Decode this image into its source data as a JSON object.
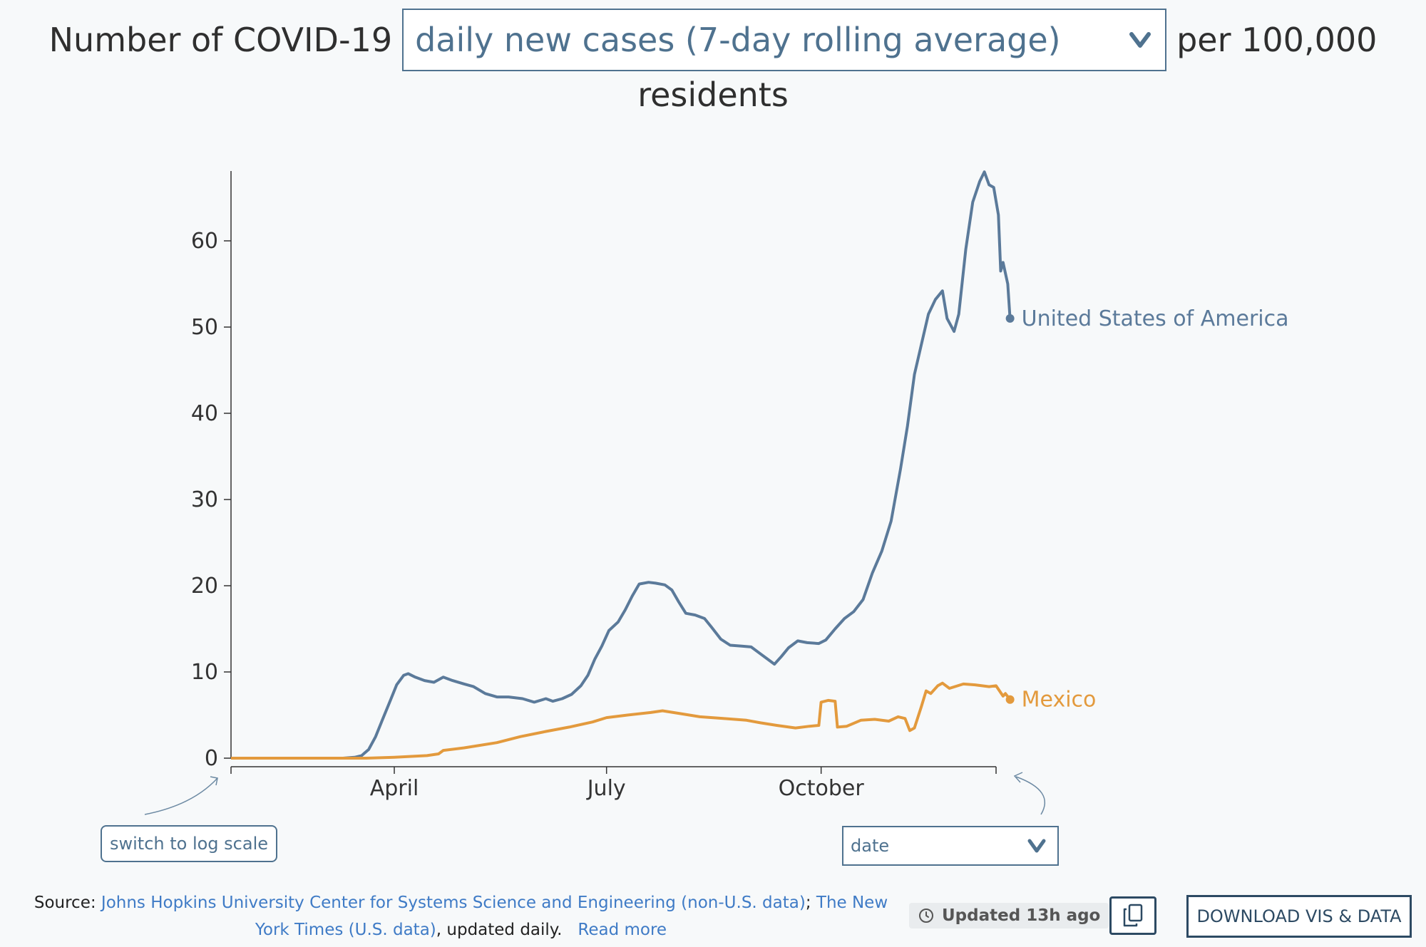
{
  "header": {
    "prefix": "Number of COVID-19",
    "metric_selected": "daily new cases (7-day rolling average)",
    "suffix": "per 100,000",
    "line2": "residents"
  },
  "controls": {
    "log_scale_label": "switch to log scale",
    "x_axis_selected": "date"
  },
  "footer": {
    "source_label": "Source:",
    "source_link_1": "Johns Hopkins University Center for Systems Science and Engineering (non-U.S. data)",
    "separator": ";",
    "source_link_2": "The New York Times (U.S. data)",
    "updated_daily": ", updated daily.",
    "read_more": "Read more",
    "updated_text": "Updated 13h ago",
    "download_label": "DOWNLOAD VIS & DATA"
  },
  "colors": {
    "usa": "#5b7a9a",
    "mexico": "#e39a3d",
    "accent": "#4f728f"
  },
  "chart_data": {
    "type": "line",
    "title": "",
    "xlabel": "",
    "ylabel": "",
    "xlim": [
      "2020-01-22",
      "2020-12-15"
    ],
    "ylim": [
      0,
      68
    ],
    "yticks": [
      0,
      10,
      20,
      30,
      40,
      50,
      60
    ],
    "xticks": [
      {
        "date": "2020-04-01",
        "label": "April"
      },
      {
        "date": "2020-07-01",
        "label": "July"
      },
      {
        "date": "2020-10-01",
        "label": "October"
      }
    ],
    "grid": false,
    "legend": "inline labels at line ends",
    "series": [
      {
        "name": "United States of America",
        "color": "#5b7a9a",
        "points": [
          [
            "2020-01-22",
            0
          ],
          [
            "2020-03-10",
            0
          ],
          [
            "2020-03-15",
            0.1
          ],
          [
            "2020-03-18",
            0.3
          ],
          [
            "2020-03-21",
            1
          ],
          [
            "2020-03-24",
            2.5
          ],
          [
            "2020-03-27",
            4.5
          ],
          [
            "2020-03-30",
            6.5
          ],
          [
            "2020-04-02",
            8.5
          ],
          [
            "2020-04-05",
            9.6
          ],
          [
            "2020-04-07",
            9.8
          ],
          [
            "2020-04-10",
            9.4
          ],
          [
            "2020-04-14",
            9.0
          ],
          [
            "2020-04-18",
            8.8
          ],
          [
            "2020-04-22",
            9.4
          ],
          [
            "2020-04-26",
            9.0
          ],
          [
            "2020-05-01",
            8.6
          ],
          [
            "2020-05-05",
            8.3
          ],
          [
            "2020-05-10",
            7.5
          ],
          [
            "2020-05-15",
            7.1
          ],
          [
            "2020-05-20",
            7.1
          ],
          [
            "2020-05-26",
            6.9
          ],
          [
            "2020-05-31",
            6.5
          ],
          [
            "2020-06-05",
            6.9
          ],
          [
            "2020-06-08",
            6.6
          ],
          [
            "2020-06-12",
            6.9
          ],
          [
            "2020-06-16",
            7.4
          ],
          [
            "2020-06-20",
            8.4
          ],
          [
            "2020-06-23",
            9.6
          ],
          [
            "2020-06-26",
            11.5
          ],
          [
            "2020-06-29",
            13.0
          ],
          [
            "2020-07-02",
            14.8
          ],
          [
            "2020-07-06",
            15.8
          ],
          [
            "2020-07-09",
            17.2
          ],
          [
            "2020-07-12",
            18.8
          ],
          [
            "2020-07-15",
            20.2
          ],
          [
            "2020-07-19",
            20.4
          ],
          [
            "2020-07-22",
            20.3
          ],
          [
            "2020-07-26",
            20.1
          ],
          [
            "2020-07-29",
            19.5
          ],
          [
            "2020-08-01",
            18.1
          ],
          [
            "2020-08-04",
            16.8
          ],
          [
            "2020-08-08",
            16.6
          ],
          [
            "2020-08-12",
            16.2
          ],
          [
            "2020-08-15",
            15.2
          ],
          [
            "2020-08-19",
            13.8
          ],
          [
            "2020-08-23",
            13.1
          ],
          [
            "2020-08-28",
            13.0
          ],
          [
            "2020-09-01",
            12.9
          ],
          [
            "2020-09-04",
            12.3
          ],
          [
            "2020-09-08",
            11.5
          ],
          [
            "2020-09-11",
            10.9
          ],
          [
            "2020-09-14",
            11.8
          ],
          [
            "2020-09-17",
            12.8
          ],
          [
            "2020-09-21",
            13.6
          ],
          [
            "2020-09-25",
            13.4
          ],
          [
            "2020-09-30",
            13.3
          ],
          [
            "2020-10-03",
            13.7
          ],
          [
            "2020-10-07",
            15.0
          ],
          [
            "2020-10-11",
            16.2
          ],
          [
            "2020-10-15",
            17.0
          ],
          [
            "2020-10-19",
            18.4
          ],
          [
            "2020-10-23",
            21.5
          ],
          [
            "2020-10-27",
            24.0
          ],
          [
            "2020-10-31",
            27.5
          ],
          [
            "2020-11-04",
            33.5
          ],
          [
            "2020-11-07",
            38.5
          ],
          [
            "2020-11-10",
            44.5
          ],
          [
            "2020-11-13",
            48.0
          ],
          [
            "2020-11-16",
            51.5
          ],
          [
            "2020-11-19",
            53.2
          ],
          [
            "2020-11-22",
            54.2
          ],
          [
            "2020-11-24",
            51.0
          ],
          [
            "2020-11-27",
            49.5
          ],
          [
            "2020-11-29",
            51.5
          ],
          [
            "2020-12-02",
            59.0
          ],
          [
            "2020-12-05",
            64.5
          ],
          [
            "2020-12-08",
            66.9
          ],
          [
            "2020-12-10",
            68.0
          ],
          [
            "2020-12-12",
            66.5
          ],
          [
            "2020-12-14",
            66.2
          ],
          [
            "2020-12-16",
            63.0
          ],
          [
            "2020-12-17",
            56.5
          ],
          [
            "2020-12-18",
            57.5
          ],
          [
            "2020-12-20",
            55.0
          ],
          [
            "2020-12-21",
            51.0
          ]
        ],
        "end_value": 51.0
      },
      {
        "name": "Mexico",
        "color": "#e39a3d",
        "points": [
          [
            "2020-01-22",
            0
          ],
          [
            "2020-03-20",
            0
          ],
          [
            "2020-04-01",
            0.1
          ],
          [
            "2020-04-15",
            0.3
          ],
          [
            "2020-04-20",
            0.5
          ],
          [
            "2020-04-22",
            0.9
          ],
          [
            "2020-05-01",
            1.2
          ],
          [
            "2020-05-15",
            1.8
          ],
          [
            "2020-05-25",
            2.5
          ],
          [
            "2020-06-05",
            3.1
          ],
          [
            "2020-06-15",
            3.6
          ],
          [
            "2020-06-25",
            4.2
          ],
          [
            "2020-07-01",
            4.7
          ],
          [
            "2020-07-10",
            5.0
          ],
          [
            "2020-07-20",
            5.3
          ],
          [
            "2020-07-25",
            5.5
          ],
          [
            "2020-08-01",
            5.2
          ],
          [
            "2020-08-10",
            4.8
          ],
          [
            "2020-08-20",
            4.6
          ],
          [
            "2020-08-30",
            4.4
          ],
          [
            "2020-09-05",
            4.1
          ],
          [
            "2020-09-12",
            3.8
          ],
          [
            "2020-09-20",
            3.5
          ],
          [
            "2020-09-26",
            3.7
          ],
          [
            "2020-09-30",
            3.8
          ],
          [
            "2020-10-01",
            6.5
          ],
          [
            "2020-10-04",
            6.7
          ],
          [
            "2020-10-07",
            6.6
          ],
          [
            "2020-10-08",
            3.6
          ],
          [
            "2020-10-12",
            3.7
          ],
          [
            "2020-10-18",
            4.4
          ],
          [
            "2020-10-24",
            4.5
          ],
          [
            "2020-10-30",
            4.3
          ],
          [
            "2020-11-03",
            4.8
          ],
          [
            "2020-11-06",
            4.6
          ],
          [
            "2020-11-08",
            3.2
          ],
          [
            "2020-11-10",
            3.5
          ],
          [
            "2020-11-13",
            6.0
          ],
          [
            "2020-11-15",
            7.8
          ],
          [
            "2020-11-17",
            7.5
          ],
          [
            "2020-11-20",
            8.4
          ],
          [
            "2020-11-22",
            8.7
          ],
          [
            "2020-11-25",
            8.1
          ],
          [
            "2020-12-01",
            8.6
          ],
          [
            "2020-12-06",
            8.5
          ],
          [
            "2020-12-12",
            8.3
          ],
          [
            "2020-12-15",
            8.4
          ],
          [
            "2020-12-18",
            7.2
          ],
          [
            "2020-12-19",
            7.5
          ],
          [
            "2020-12-21",
            6.8
          ]
        ],
        "end_value": 6.8
      }
    ]
  }
}
